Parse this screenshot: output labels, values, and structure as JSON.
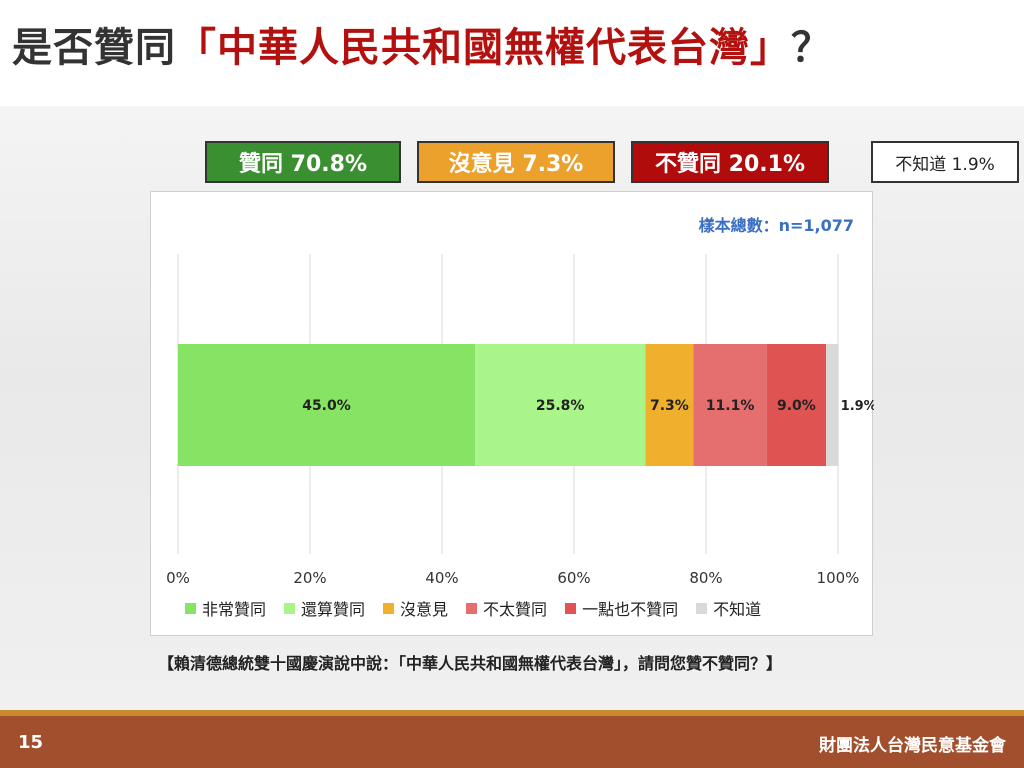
{
  "slide": {
    "title_prefix": "是否贊同",
    "title_quoted": "「中華人民共和國無權代表台灣」",
    "title_suffix": "？",
    "page_number": "15",
    "organization": "財團法人台灣民意基金會",
    "question": "【賴清德總統雙十國慶演說中說：「中華人民共和國無權代表台灣」，請問您贊不贊同？】"
  },
  "summary": {
    "agree": "贊同 70.8%",
    "neutral": "沒意見 7.3%",
    "disagree": "不贊同 20.1%",
    "unknown": "不知道 1.9%"
  },
  "sample_size": "樣本總數：n=1,077",
  "colors": {
    "agree_box": "#3a8f30",
    "neutral_box": "#eba12b",
    "disagree_box": "#b10b0b",
    "footer": "#a24f2e",
    "title_accent": "#b3110f"
  },
  "chart_data": {
    "type": "bar",
    "orientation": "horizontal",
    "stacked": true,
    "xlim": [
      0,
      100
    ],
    "xticks": [
      "0%",
      "20%",
      "40%",
      "60%",
      "80%",
      "100%"
    ],
    "grid": true,
    "legend_position": "bottom",
    "series": [
      {
        "name": "非常贊同",
        "value": 45.0,
        "label": "45.0%",
        "color": "#86e363"
      },
      {
        "name": "還算贊同",
        "value": 25.8,
        "label": "25.8%",
        "color": "#a9f58a"
      },
      {
        "name": "沒意見",
        "value": 7.3,
        "label": "7.3%",
        "color": "#f0b02e"
      },
      {
        "name": "不太贊同",
        "value": 11.1,
        "label": "11.1%",
        "color": "#e56f6f"
      },
      {
        "name": "一點也不贊同",
        "value": 9.0,
        "label": "9.0%",
        "color": "#e05353"
      },
      {
        "name": "不知道",
        "value": 1.9,
        "label": "1.9%",
        "color": "#d9d9d9"
      }
    ]
  }
}
